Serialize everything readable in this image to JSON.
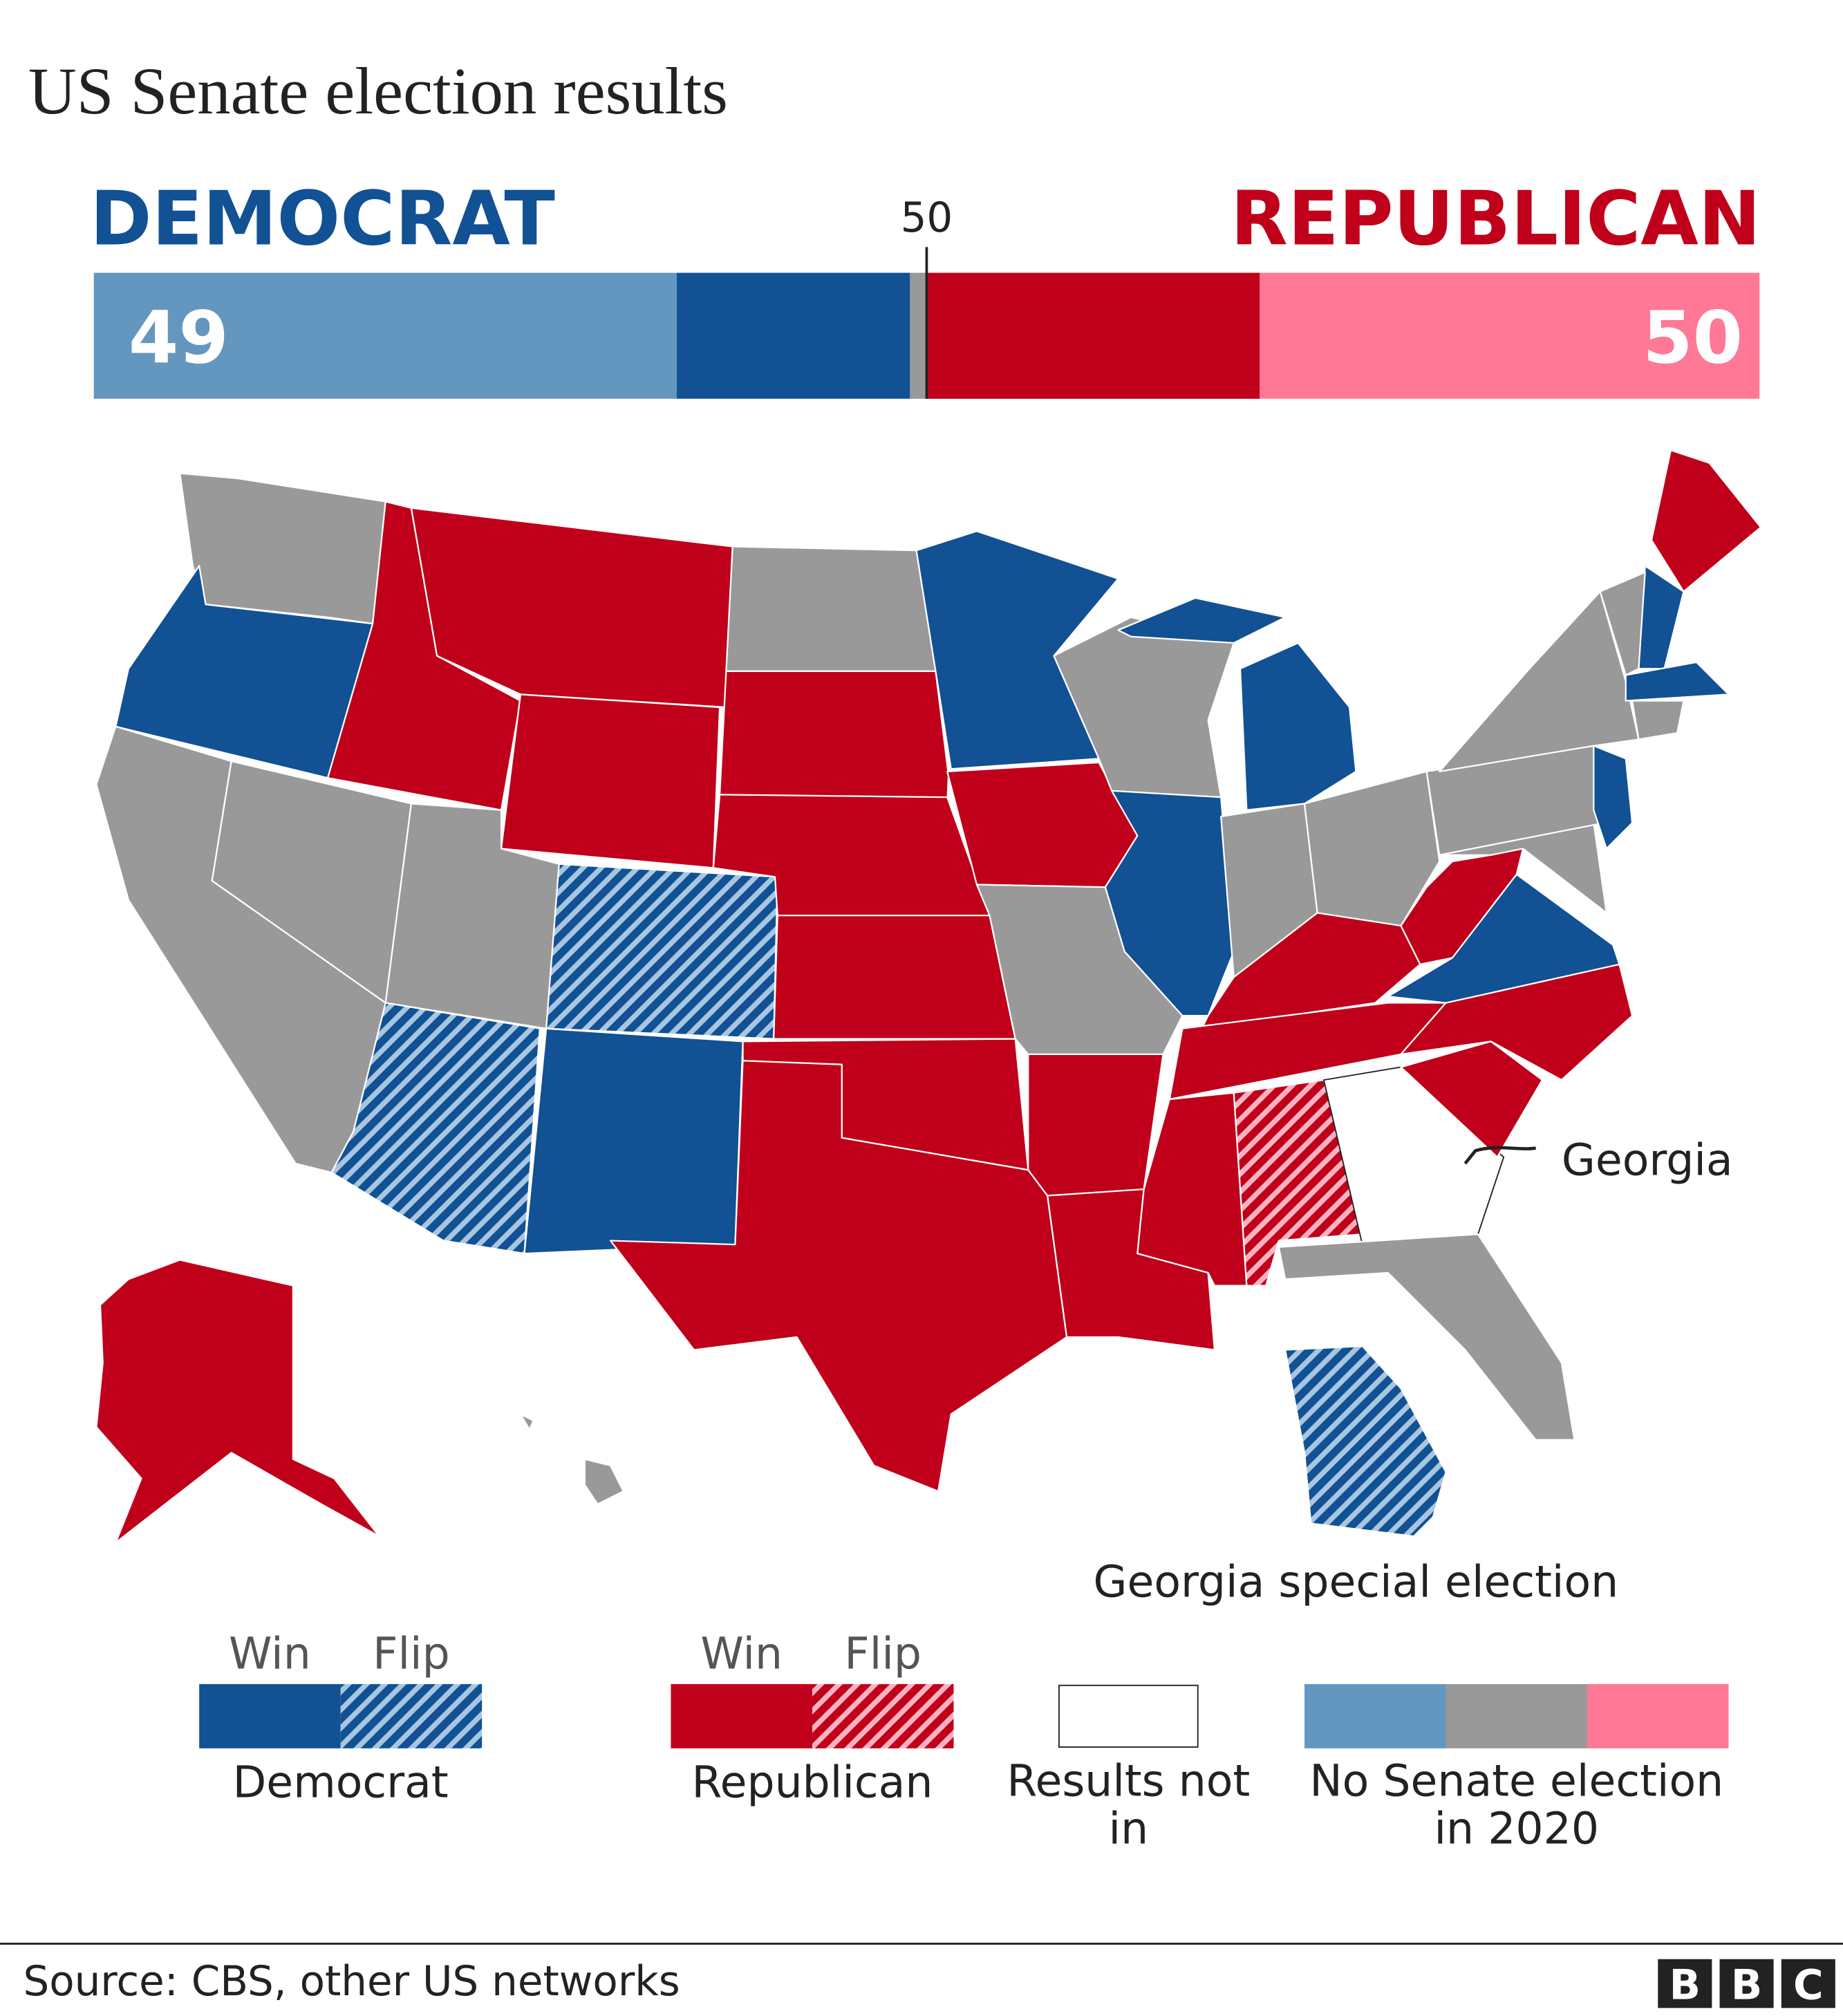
{
  "title": "US Senate election results",
  "seat_bar": {
    "democrat": {
      "label": "DEMOCRAT",
      "total": 49,
      "label_color": "#115194",
      "segments": [
        {
          "value": 35,
          "color": "#6497bf"
        },
        {
          "value": 14,
          "color": "#115194"
        }
      ]
    },
    "undecided": {
      "value": 1,
      "color": "#999999"
    },
    "republican": {
      "label": "REPUBLICAN",
      "total": 50,
      "label_color": "#c0001a",
      "segments": [
        {
          "value": 20,
          "color": "#c0001a"
        },
        {
          "value": 30,
          "color": "#ff7896"
        }
      ]
    },
    "majority": 50
  },
  "annotations": {
    "georgia": "Georgia",
    "georgia_special": "Georgia special election"
  },
  "legend": {
    "democrat": {
      "win": "Win",
      "flip": "Flip",
      "label": "Democrat"
    },
    "republican": {
      "win": "Win",
      "flip": "Flip",
      "label": "Republican"
    },
    "not_in": "Results not in",
    "no_election": "No Senate election in 2020"
  },
  "source": "Source: CBS, other US networks",
  "logo": [
    "B",
    "B",
    "C"
  ]
}
